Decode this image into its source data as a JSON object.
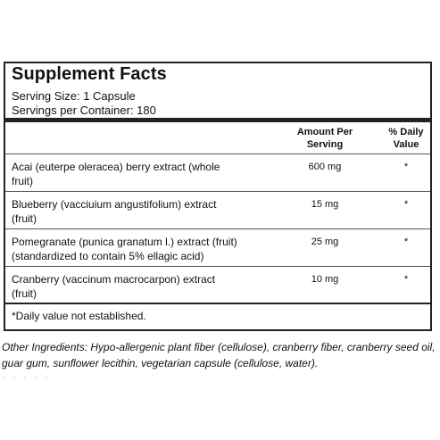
{
  "panel": {
    "title": "Supplement Facts",
    "serving_size": "Serving Size: 1 Capsule",
    "servings_per_container": "Servings per Container: 180"
  },
  "columns": {
    "amount_line1": "Amount Per",
    "amount_line2": "Serving",
    "dv_line1": "% Daily",
    "dv_line2": "Value"
  },
  "rows": [
    {
      "name_line1": "Acai (euterpe oleracea) berry extract (whole",
      "name_line2": "fruit)",
      "amount": "600 mg",
      "dv": "*"
    },
    {
      "name_line1": "Blueberry (vacciuium angustifolium) extract",
      "name_line2": "(fruit)",
      "amount": "15 mg",
      "dv": "*"
    },
    {
      "name_line1": "Pomegranate (punica granatum l.) extract (fruit)",
      "name_line2": "(standardized to contain 5% ellagic acid)",
      "amount": "25 mg",
      "dv": "*"
    },
    {
      "name_line1": "Cranberry (vaccinum macrocarpon) extract",
      "name_line2": "(fruit)",
      "amount": "10 mg",
      "dv": "*"
    }
  ],
  "footnote": "*Daily value not established.",
  "other_ingredients": "Other Ingredients: Hypo-allergenic plant fiber (cellulose), cranberry fiber, cranberry seed oil, guar gum, sunflower lecithin, vegetarian capsule (cellulose, water)."
}
